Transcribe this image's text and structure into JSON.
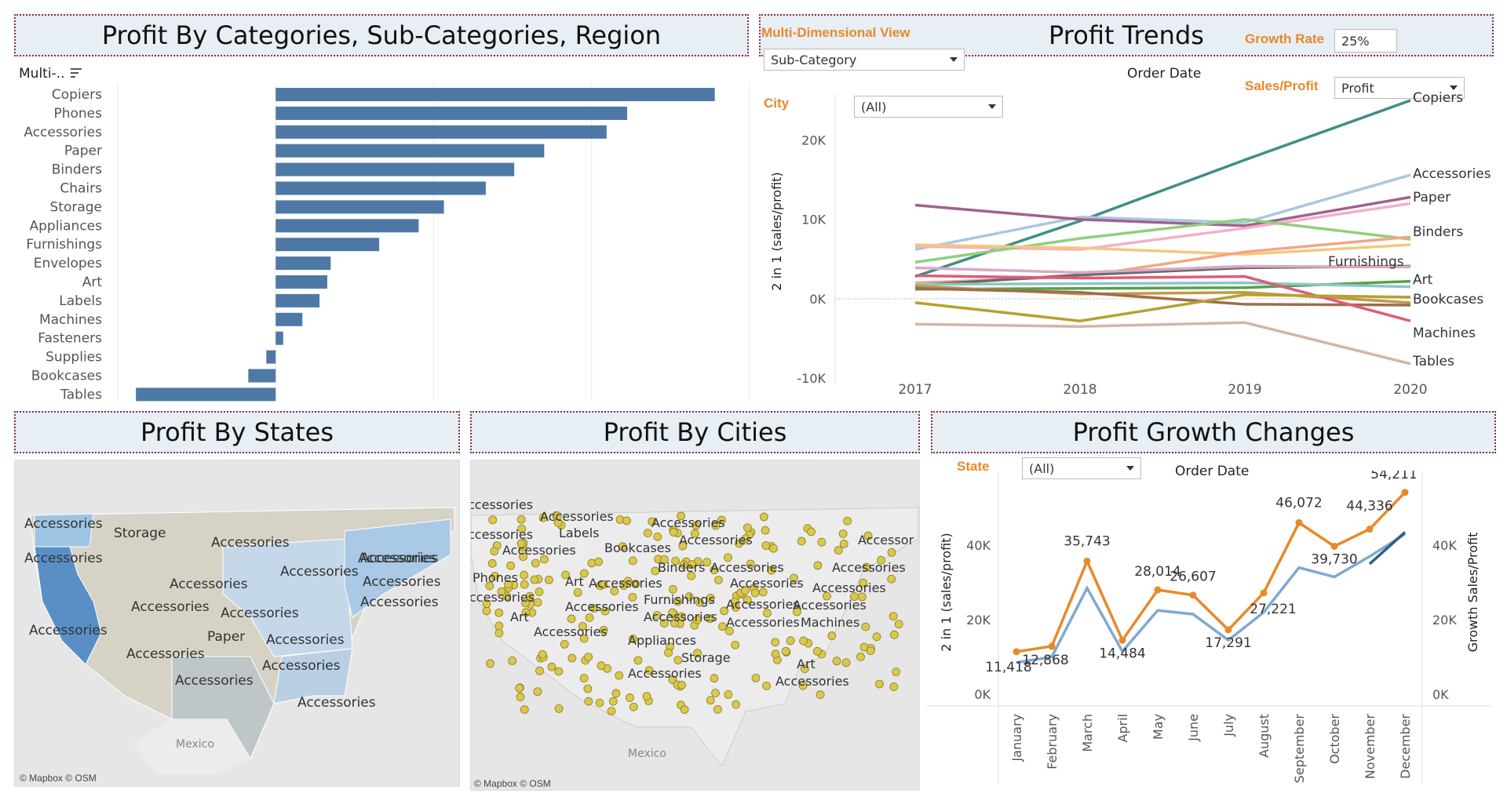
{
  "panels": {
    "categories_title": "Profit By Categories, Sub-Categories, Region",
    "trends_title": "Profit Trends",
    "states_title": "Profit By States",
    "cities_title": "Profit By Cities",
    "growth_title": "Profit Growth Changes"
  },
  "controls": {
    "multi_label": "Multi-..",
    "multidim_label": "Multi-Dimensional View",
    "multidim_value": "Sub-Category",
    "growth_rate_label": "Growth Rate",
    "growth_rate_value": "25%",
    "order_date_label": "Order Date",
    "sales_profit_label": "Sales/Profit",
    "sales_profit_value": "Profit",
    "city_label": "City",
    "city_value": "(All)",
    "state_label": "State",
    "state_value": "(All)",
    "growth_order_date_label": "Order Date"
  },
  "maps": {
    "states_credit": "© Mapbox © OSM",
    "cities_credit": "© Mapbox © OSM",
    "states_mexico": "Mexico",
    "cities_mexico": "Mexico",
    "states_labels": [
      "Accessories",
      "Storage",
      "Accessories",
      "Accessories",
      "Accessories",
      "Accessories",
      "Accessories",
      "Accessories",
      "Accessories",
      "Accessories",
      "Accessories",
      "Accessories",
      "Paper",
      "Accessories",
      "Accessories",
      "Accessories",
      "Accessories",
      "Accessories",
      "Accessories"
    ],
    "cities_labels": [
      "ccessories",
      "Accessories",
      "Accessories",
      "ccessories",
      "Labels",
      "Accessories",
      "Accessories",
      "Bookcases",
      "Accessor",
      "Binders",
      "Accessories",
      "Accessories",
      "Phones",
      "Art",
      "Accessories",
      "Accessories",
      "Accessories",
      "ccessories",
      "Furnishings",
      "Accessories",
      "Accessories",
      "Accessories",
      "Art",
      "Accessories",
      "Accessories",
      "Machines",
      "Appliances",
      "Accessories",
      "Storage",
      "Accessories",
      "Art",
      "Accessories"
    ]
  },
  "chart_data": [
    {
      "type": "bar",
      "orientation": "horizontal",
      "categories": [
        "Copiers",
        "Phones",
        "Accessories",
        "Paper",
        "Binders",
        "Chairs",
        "Storage",
        "Appliances",
        "Furnishings",
        "Envelopes",
        "Art",
        "Labels",
        "Machines",
        "Fasteners",
        "Supplies",
        "Bookcases",
        "Tables"
      ],
      "values": [
        55600,
        44500,
        41900,
        34000,
        30200,
        26600,
        21300,
        18100,
        13100,
        6960,
        6530,
        5550,
        3380,
        950,
        -1190,
        -3470,
        -17700
      ],
      "xlim": [
        -20000,
        60000
      ],
      "grid": true
    },
    {
      "type": "line",
      "title": "Order Date",
      "ylabel": "2 in 1 (sales/profit)",
      "x": [
        "2017",
        "2018",
        "2019",
        "2020"
      ],
      "y_ticks": [
        "20K",
        "10K",
        "0K",
        "-10K"
      ],
      "ylim": [
        -10000,
        25000
      ],
      "series": [
        {
          "name": "Copiers",
          "color": "#3f8f85",
          "values": [
            2800,
            9800,
            17500,
            25000
          ]
        },
        {
          "name": "Accessories",
          "color": "#a8c8e0",
          "values": [
            6200,
            10300,
            9600,
            15600
          ]
        },
        {
          "name": "Paper",
          "color": "#a0628c",
          "values": [
            11800,
            10000,
            9200,
            12800
          ]
        },
        {
          "name": "",
          "color": "#f2b0c8",
          "values": [
            6600,
            6200,
            8900,
            12000
          ]
        },
        {
          "name": "Binders",
          "color": "#8fcf7c",
          "values": [
            4600,
            7600,
            10000,
            7500
          ]
        },
        {
          "name": "",
          "color": "#f3c87c",
          "values": [
            6800,
            6400,
            5600,
            6800
          ]
        },
        {
          "name": "",
          "color": "#f4a582",
          "values": [
            2000,
            2800,
            5900,
            7800
          ]
        },
        {
          "name": "Furnishings",
          "color": "#6b6b6b",
          "values": [
            1700,
            3000,
            3900,
            4100
          ]
        },
        {
          "name": "",
          "color": "#d9a8c7",
          "values": [
            3900,
            3300,
            4100,
            4000
          ]
        },
        {
          "name": "Art",
          "color": "#58a04a",
          "values": [
            1200,
            1300,
            1400,
            2200
          ]
        },
        {
          "name": "",
          "color": "#8cc6c6",
          "values": [
            1800,
            1900,
            2000,
            1500
          ]
        },
        {
          "name": "Bookcases",
          "color": "#c49848",
          "values": [
            1600,
            600,
            800,
            -500
          ]
        },
        {
          "name": "",
          "color": "#9b6e4b",
          "values": [
            1300,
            800,
            -700,
            -800
          ]
        },
        {
          "name": "Machines",
          "color": "#e05a7c",
          "values": [
            2900,
            2600,
            2800,
            -2800
          ]
        },
        {
          "name": "",
          "color": "#b8a030",
          "values": [
            -500,
            -2800,
            500,
            200
          ]
        },
        {
          "name": "Tables",
          "color": "#d3b5a6",
          "values": [
            -3200,
            -3500,
            -3000,
            -8200
          ]
        }
      ]
    },
    {
      "type": "line",
      "title": "Order Date",
      "ylabel": "2 in 1 (sales/profit)",
      "y2label": "Growth Sales/Profit",
      "x": [
        "January",
        "February",
        "March",
        "April",
        "May",
        "June",
        "July",
        "August",
        "September",
        "October",
        "November",
        "December"
      ],
      "y_ticks": [
        "40K",
        "20K",
        "0K"
      ],
      "ylim": [
        0,
        55000
      ],
      "series": [
        {
          "name": "",
          "color": "#e8892a",
          "values": [
            11418,
            12868,
            35743,
            14484,
            28014,
            26607,
            17291,
            27221,
            46072,
            39730,
            44336,
            54211
          ],
          "labels": [
            "11,418",
            "12,868",
            "35,743",
            "14,484",
            "28,014",
            "26,607",
            "17,291",
            "27,221",
            "46,072",
            "39,730",
            "44,336",
            "54,211"
          ]
        },
        {
          "name": "",
          "color": "#7fa9d1",
          "values": [
            8500,
            10000,
            28500,
            11500,
            22500,
            21500,
            14500,
            22000,
            34000,
            31500,
            37000,
            43000
          ]
        },
        {
          "name": "",
          "color": "#2f5d8c",
          "values": [
            null,
            null,
            null,
            null,
            null,
            null,
            null,
            null,
            null,
            null,
            35000,
            43500
          ]
        }
      ]
    }
  ]
}
